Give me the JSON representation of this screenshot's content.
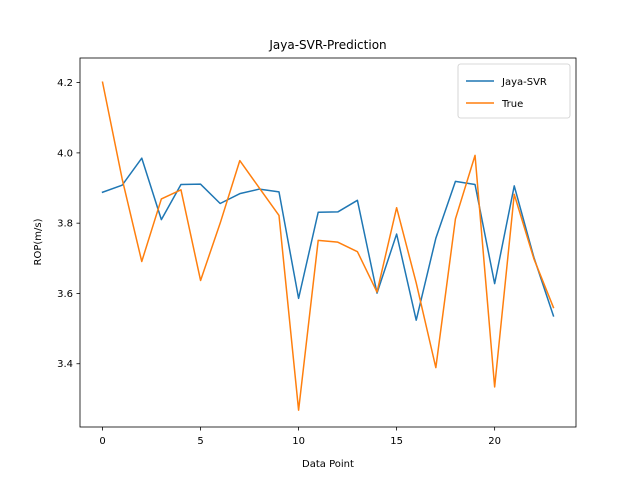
{
  "chart_data": {
    "type": "line",
    "title": "Jaya-SVR-Prediction",
    "xlabel": "Data Point",
    "ylabel": "ROP(m/s)",
    "xlim": [
      -1.15,
      24.15
    ],
    "ylim": [
      3.22,
      4.27
    ],
    "xticks": [
      0,
      5,
      10,
      15,
      20
    ],
    "xtick_labels": [
      "0",
      "5",
      "10",
      "15",
      "20"
    ],
    "yticks": [
      3.4,
      3.6,
      3.8,
      4.0,
      4.2
    ],
    "ytick_labels": [
      "3.4",
      "3.6",
      "3.8",
      "4.0",
      "4.2"
    ],
    "grid": false,
    "legend_position": "top-right",
    "x": [
      0,
      1,
      2,
      3,
      4,
      5,
      6,
      7,
      8,
      9,
      10,
      11,
      12,
      13,
      14,
      15,
      16,
      17,
      18,
      19,
      20,
      21,
      22,
      23
    ],
    "series": [
      {
        "name": "Jaya-SVR",
        "color": "#1f77b4",
        "values": [
          3.888,
          3.908,
          3.985,
          3.81,
          3.91,
          3.911,
          3.856,
          3.884,
          3.897,
          3.889,
          3.586,
          3.831,
          3.832,
          3.865,
          3.601,
          3.769,
          3.524,
          3.757,
          3.919,
          3.91,
          3.628,
          3.906,
          3.703,
          3.536
        ]
      },
      {
        "name": "True",
        "color": "#ff7f0e",
        "values": [
          4.201,
          3.926,
          3.691,
          3.869,
          3.895,
          3.637,
          3.8,
          3.978,
          3.9,
          3.822,
          3.268,
          3.751,
          3.746,
          3.719,
          3.604,
          3.844,
          3.63,
          3.389,
          3.812,
          3.993,
          3.334,
          3.882,
          3.699,
          3.56
        ]
      }
    ]
  }
}
